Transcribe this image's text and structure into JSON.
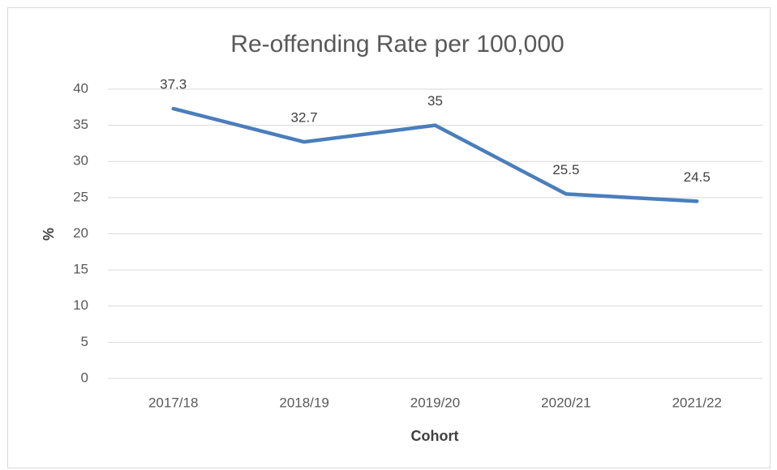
{
  "chart_data": {
    "type": "line",
    "title": "Re-offending Rate per 100,000",
    "x_label": "Cohort",
    "y_label": "%",
    "categories": [
      "2017/18",
      "2018/19",
      "2019/20",
      "2020/21",
      "2021/22"
    ],
    "series": [
      {
        "name": "Re-offending Rate",
        "color": "#4a7ebb",
        "values": [
          37.3,
          32.7,
          35,
          25.5,
          24.5
        ]
      }
    ],
    "ylim": [
      0,
      40
    ],
    "yticks": [
      0,
      5,
      10,
      15,
      20,
      25,
      30,
      35,
      40
    ],
    "grid": true,
    "data_labels": true
  }
}
